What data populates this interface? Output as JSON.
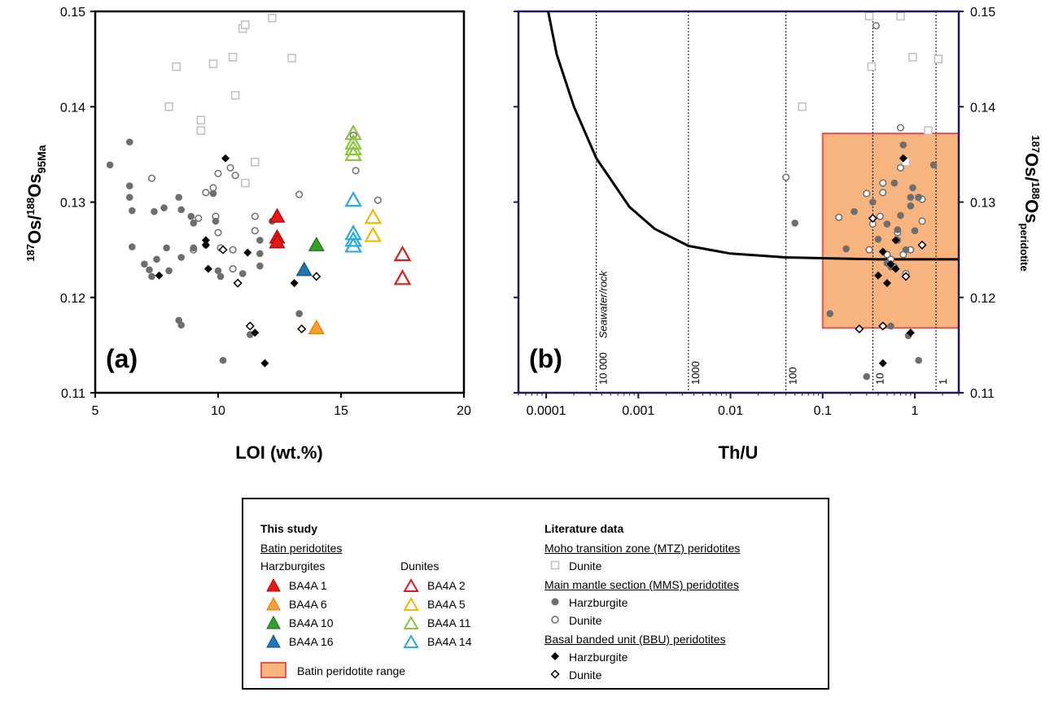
{
  "panel_a": {
    "tag": "(a)",
    "xlabel": "LOI (wt.%)",
    "ylabel_parts": [
      "187",
      "Os/",
      "188",
      "Os",
      "95Ma"
    ],
    "xticks": [
      "5",
      "10",
      "15",
      "20"
    ],
    "yticks": [
      "0.11",
      "0.12",
      "0.13",
      "0.14",
      "0.15"
    ]
  },
  "panel_b": {
    "tag": "(b)",
    "xlabel": "Th/U",
    "ylabel_parts": [
      "187",
      "Os/",
      "188",
      "Os",
      "peridotite"
    ],
    "xticks": [
      "0.0001",
      "0.001",
      "0.01",
      "0.1",
      "1"
    ],
    "yticks": [
      "0.11",
      "0.12",
      "0.13",
      "0.14",
      "0.15"
    ],
    "ratio_labels": [
      "Seawater/rock",
      "10 000",
      "1000",
      "100",
      "10",
      "1"
    ]
  },
  "colors": {
    "ba4a1": "#e31a1c",
    "ba4a6": "#f7a02f",
    "ba4a10": "#33a02c",
    "ba4a16": "#1f78b4",
    "ba4a2": "#e31a1c",
    "ba4a5": "#f5b800",
    "ba4a11": "#8cc63f",
    "ba4a14": "#29aae1",
    "range_fill": "#f8b47f",
    "range_edge": "#ef4f4f",
    "mtz": "#bfbfbf",
    "mms": "#6e6e6e",
    "frame_b": "#1a1a5a"
  },
  "legend": {
    "this_study": "This study",
    "batin": "Batin peridotites",
    "harz_head": "Harzburgites",
    "dun_head": "Dunites",
    "harz_items": [
      "BA4A 1",
      "BA4A 6",
      "BA4A 10",
      "BA4A 16"
    ],
    "dun_items": [
      "BA4A 2",
      "BA4A 5",
      "BA4A 11",
      "BA4A 14"
    ],
    "range": "Batin peridotite range",
    "literature": "Literature data",
    "mtz": "Moho transition zone (MTZ) peridotites",
    "mtz_dunite": "Dunite",
    "mms": "Main mantle section (MMS) peridotites",
    "mms_harz": "Harzburgite",
    "mms_dun": "Dunite",
    "bbu": "Basal banded unit (BBU) peridotites",
    "bbu_harz": "Harzburgite",
    "bbu_dun": "Dunite"
  },
  "chart_data": [
    {
      "type": "scatter",
      "panel": "(a)",
      "xlabel": "LOI (wt.%)",
      "ylabel": "187Os/188Os95Ma",
      "xlim": [
        5,
        20
      ],
      "ylim": [
        0.11,
        0.15
      ],
      "series": [
        {
          "name": "BA4A 1",
          "marker": "filled-triangle",
          "points": [
            [
              12.4,
              0.1285
            ],
            [
              12.4,
              0.1263
            ],
            [
              12.4,
              0.1258
            ]
          ]
        },
        {
          "name": "BA4A 6",
          "marker": "filled-triangle",
          "points": [
            [
              14.0,
              0.1168
            ]
          ]
        },
        {
          "name": "BA4A 10",
          "marker": "filled-triangle",
          "points": [
            [
              14.0,
              0.1255
            ]
          ]
        },
        {
          "name": "BA4A 16",
          "marker": "filled-triangle",
          "points": [
            [
              13.5,
              0.1229
            ]
          ]
        },
        {
          "name": "BA4A 2",
          "marker": "open-triangle",
          "points": [
            [
              17.5,
              0.1245
            ],
            [
              17.5,
              0.122
            ]
          ]
        },
        {
          "name": "BA4A 5",
          "marker": "open-triangle",
          "points": [
            [
              16.3,
              0.1284
            ],
            [
              16.3,
              0.1265
            ]
          ]
        },
        {
          "name": "BA4A 11",
          "marker": "open-triangle",
          "points": [
            [
              15.5,
              0.1372
            ],
            [
              15.5,
              0.1362
            ],
            [
              15.5,
              0.1356
            ],
            [
              15.5,
              0.135
            ]
          ]
        },
        {
          "name": "BA4A 14",
          "marker": "open-triangle",
          "points": [
            [
              15.5,
              0.1302
            ],
            [
              15.5,
              0.1267
            ],
            [
              15.5,
              0.126
            ],
            [
              15.5,
              0.1254
            ]
          ]
        },
        {
          "name": "Dunite",
          "group": "MTZ",
          "marker": "open-square",
          "points": [
            [
              8.0,
              0.14
            ],
            [
              8.3,
              0.1442
            ],
            [
              9.3,
              0.1375
            ],
            [
              9.3,
              0.1386
            ],
            [
              9.8,
              0.1445
            ],
            [
              10.6,
              0.1452
            ],
            [
              10.7,
              0.1412
            ],
            [
              11.0,
              0.1482
            ],
            [
              11.1,
              0.1486
            ],
            [
              11.1,
              0.132
            ],
            [
              11.5,
              0.1342
            ],
            [
              12.2,
              0.1493
            ],
            [
              13.0,
              0.1451
            ]
          ]
        },
        {
          "name": "Harzburgite",
          "group": "MMS",
          "marker": "filled-circle",
          "points": [
            [
              5.6,
              0.1339
            ],
            [
              6.4,
              0.1363
            ],
            [
              6.4,
              0.1317
            ],
            [
              6.4,
              0.1305
            ],
            [
              6.5,
              0.1291
            ],
            [
              6.5,
              0.1253
            ],
            [
              7.0,
              0.1235
            ],
            [
              7.2,
              0.1229
            ],
            [
              7.3,
              0.1222
            ],
            [
              7.4,
              0.129
            ],
            [
              7.5,
              0.124
            ],
            [
              7.8,
              0.1294
            ],
            [
              7.9,
              0.1252
            ],
            [
              8.0,
              0.1228
            ],
            [
              8.4,
              0.1305
            ],
            [
              8.5,
              0.1292
            ],
            [
              8.5,
              0.1242
            ],
            [
              8.4,
              0.1176
            ],
            [
              8.5,
              0.1171
            ],
            [
              8.9,
              0.1285
            ],
            [
              9.0,
              0.1278
            ],
            [
              9.0,
              0.1252
            ],
            [
              9.5,
              0.1255
            ],
            [
              9.8,
              0.1309
            ],
            [
              9.9,
              0.128
            ],
            [
              10.0,
              0.1228
            ],
            [
              10.1,
              0.1222
            ],
            [
              10.2,
              0.1134
            ],
            [
              11.0,
              0.1225
            ],
            [
              11.3,
              0.1161
            ],
            [
              11.7,
              0.126
            ],
            [
              11.7,
              0.1246
            ],
            [
              11.7,
              0.1233
            ],
            [
              12.2,
              0.128
            ],
            [
              13.3,
              0.1183
            ]
          ]
        },
        {
          "name": "Dunite",
          "group": "MMS",
          "marker": "open-circle",
          "points": [
            [
              7.3,
              0.1325
            ],
            [
              9.0,
              0.125
            ],
            [
              9.2,
              0.1283
            ],
            [
              9.5,
              0.131
            ],
            [
              9.8,
              0.1315
            ],
            [
              9.9,
              0.1285
            ],
            [
              10.0,
              0.133
            ],
            [
              10.1,
              0.1252
            ],
            [
              10.0,
              0.1268
            ],
            [
              10.5,
              0.1336
            ],
            [
              10.6,
              0.125
            ],
            [
              10.6,
              0.123
            ],
            [
              10.7,
              0.1328
            ],
            [
              11.5,
              0.1285
            ],
            [
              11.5,
              0.127
            ],
            [
              13.3,
              0.1308
            ],
            [
              15.5,
              0.137
            ],
            [
              15.6,
              0.1333
            ],
            [
              16.5,
              0.1302
            ]
          ]
        },
        {
          "name": "Harzburgite",
          "group": "BBU",
          "marker": "filled-diamond",
          "points": [
            [
              7.6,
              0.1223
            ],
            [
              9.5,
              0.126
            ],
            [
              9.5,
              0.1255
            ],
            [
              9.6,
              0.123
            ],
            [
              10.3,
              0.1346
            ],
            [
              11.2,
              0.1247
            ],
            [
              11.5,
              0.1163
            ],
            [
              11.9,
              0.1131
            ],
            [
              13.1,
              0.1215
            ]
          ]
        },
        {
          "name": "Dunite",
          "group": "BBU",
          "marker": "open-diamond",
          "points": [
            [
              10.2,
              0.125
            ],
            [
              10.8,
              0.1215
            ],
            [
              11.3,
              0.117
            ],
            [
              13.4,
              0.1167
            ],
            [
              14.0,
              0.1222
            ]
          ]
        }
      ]
    },
    {
      "type": "scatter",
      "panel": "(b)",
      "xlabel": "Th/U",
      "ylabel": "187Os/188Osperidotite",
      "xscale": "log",
      "xlim": [
        5e-05,
        3
      ],
      "ylim": [
        0.11,
        0.15
      ],
      "range_box": {
        "label": "Batin peridotite range",
        "x": [
          0.1,
          3
        ],
        "y": [
          0.1168,
          0.1372
        ]
      },
      "mixing_curve_label": "Seawater/rock",
      "mixing_curve": [
        [
          0.000105,
          0.15
        ],
        [
          0.00013,
          0.1455
        ],
        [
          0.0002,
          0.14
        ],
        [
          0.00035,
          0.1346
        ],
        [
          0.0008,
          0.1295
        ],
        [
          0.0015,
          0.1272
        ],
        [
          0.0035,
          0.1254
        ],
        [
          0.01,
          0.1246
        ],
        [
          0.04,
          0.1242
        ],
        [
          0.4,
          0.124
        ],
        [
          3,
          0.124
        ]
      ],
      "ratio_lines": [
        {
          "label": "10 000",
          "x": 0.00035
        },
        {
          "label": "1000",
          "x": 0.0035
        },
        {
          "label": "100",
          "x": 0.04
        },
        {
          "label": "10",
          "x": 0.35
        },
        {
          "label": "1",
          "x": 1.7
        }
      ],
      "series": [
        {
          "name": "Dunite",
          "group": "MTZ",
          "marker": "open-square",
          "points": [
            [
              0.06,
              0.14
            ],
            [
              0.32,
              0.1495
            ],
            [
              0.34,
              0.1442
            ],
            [
              0.7,
              0.1495
            ],
            [
              0.95,
              0.1452
            ],
            [
              1.4,
              0.1375
            ],
            [
              1.8,
              0.145
            ],
            [
              0.8,
              0.1342
            ]
          ]
        },
        {
          "name": "Harzburgite",
          "group": "MMS",
          "marker": "filled-circle",
          "points": [
            [
              0.05,
              0.1278
            ],
            [
              0.12,
              0.1183
            ],
            [
              0.18,
              0.1251
            ],
            [
              0.22,
              0.129
            ],
            [
              0.3,
              0.1117
            ],
            [
              0.35,
              0.13
            ],
            [
              0.4,
              0.1261
            ],
            [
              0.45,
              0.117
            ],
            [
              0.5,
              0.1277
            ],
            [
              0.5,
              0.1236
            ],
            [
              0.55,
              0.1232
            ],
            [
              0.55,
              0.117
            ],
            [
              0.6,
              0.132
            ],
            [
              0.65,
              0.1271
            ],
            [
              0.65,
              0.126
            ],
            [
              0.7,
              0.1286
            ],
            [
              0.75,
              0.136
            ],
            [
              0.8,
              0.125
            ],
            [
              0.85,
              0.116
            ],
            [
              0.9,
              0.1305
            ],
            [
              0.9,
              0.1296
            ],
            [
              0.95,
              0.1315
            ],
            [
              1.0,
              0.127
            ],
            [
              1.1,
              0.1134
            ],
            [
              1.1,
              0.1305
            ],
            [
              1.6,
              0.1339
            ]
          ]
        },
        {
          "name": "Dunite",
          "group": "MMS",
          "marker": "open-circle",
          "points": [
            [
              0.04,
              0.1326
            ],
            [
              0.15,
              0.1284
            ],
            [
              0.3,
              0.1309
            ],
            [
              0.32,
              0.125
            ],
            [
              0.35,
              0.1277
            ],
            [
              0.42,
              0.1285
            ],
            [
              0.45,
              0.132
            ],
            [
              0.45,
              0.131
            ],
            [
              0.5,
              0.1245
            ],
            [
              0.55,
              0.124
            ],
            [
              0.6,
              0.1232
            ],
            [
              0.65,
              0.1268
            ],
            [
              0.7,
              0.1336
            ],
            [
              0.7,
              0.1378
            ],
            [
              0.75,
              0.1245
            ],
            [
              0.8,
              0.1225
            ],
            [
              0.9,
              0.125
            ],
            [
              1.1,
              0.1305
            ],
            [
              1.2,
              0.128
            ],
            [
              1.2,
              0.1303
            ],
            [
              0.38,
              0.1485
            ]
          ]
        },
        {
          "name": "Harzburgite",
          "group": "BBU",
          "marker": "filled-diamond",
          "points": [
            [
              0.4,
              0.1223
            ],
            [
              0.45,
              0.1248
            ],
            [
              0.5,
              0.1215
            ],
            [
              0.45,
              0.1131
            ],
            [
              0.55,
              0.1235
            ],
            [
              0.62,
              0.126
            ],
            [
              0.62,
              0.123
            ],
            [
              0.75,
              0.1346
            ],
            [
              0.9,
              0.1163
            ]
          ]
        },
        {
          "name": "Dunite",
          "group": "BBU",
          "marker": "open-diamond",
          "points": [
            [
              0.25,
              0.1167
            ],
            [
              0.35,
              0.1283
            ],
            [
              0.45,
              0.117
            ],
            [
              0.8,
              0.1222
            ],
            [
              1.2,
              0.1255
            ]
          ]
        }
      ]
    }
  ]
}
